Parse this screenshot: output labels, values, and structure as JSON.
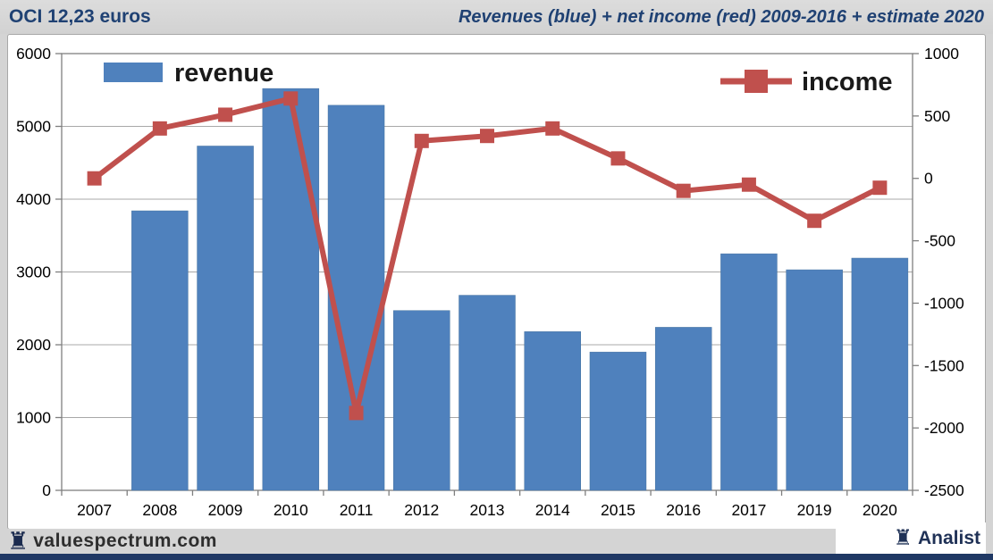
{
  "header": {
    "left": "OCI 12,23 euros",
    "right": "Revenues (blue) + net income (red) 2009-2016 + estimate 2020"
  },
  "footer": {
    "left_brand": "valuespectrum.com",
    "right_brand": "Analist",
    "rook_icon": "♜"
  },
  "colors": {
    "bar_blue": "#4f81bd",
    "line_red": "#c0504d",
    "header_navy": "#1f4173",
    "bottom_bar_navy": "#1f3864",
    "page_bg": "#d4d4d4",
    "plot_bg": "#ffffff",
    "grid": "#a8a8a8",
    "axis": "#7f7f7f",
    "axis_text": "#000000"
  },
  "chart_data": {
    "type": "bar",
    "subtype": "bar+line, dual axis",
    "title": "Revenues (blue) + net income (red) 2009-2016 + estimate 2020",
    "categories": [
      "2007",
      "2008",
      "2009",
      "2010",
      "2011",
      "2012",
      "2013",
      "2014",
      "2015",
      "2016",
      "2017",
      "2019",
      "2020"
    ],
    "series": [
      {
        "name": "revenue",
        "type": "bar",
        "axis": "left",
        "color": "#4f81bd",
        "values": [
          null,
          3840,
          4730,
          5520,
          5290,
          2470,
          2680,
          2180,
          1900,
          2240,
          3250,
          3030,
          3190
        ]
      },
      {
        "name": "income",
        "type": "line",
        "axis": "right",
        "color": "#c0504d",
        "values": [
          0,
          400,
          510,
          640,
          -1880,
          300,
          340,
          400,
          160,
          -100,
          -50,
          -340,
          -75
        ]
      }
    ],
    "left_axis": {
      "min": 0,
      "max": 6000,
      "step": 1000,
      "ticks": [
        0,
        1000,
        2000,
        3000,
        4000,
        5000,
        6000
      ]
    },
    "right_axis": {
      "min": -2500,
      "max": 1000,
      "step": 500,
      "ticks": [
        1000,
        500,
        0,
        -500,
        -1000,
        -1500,
        -2000,
        -2500
      ]
    },
    "grid": true,
    "legend": [
      {
        "label": "revenue",
        "position": "top-left"
      },
      {
        "label": "income",
        "position": "top-right"
      }
    ]
  }
}
